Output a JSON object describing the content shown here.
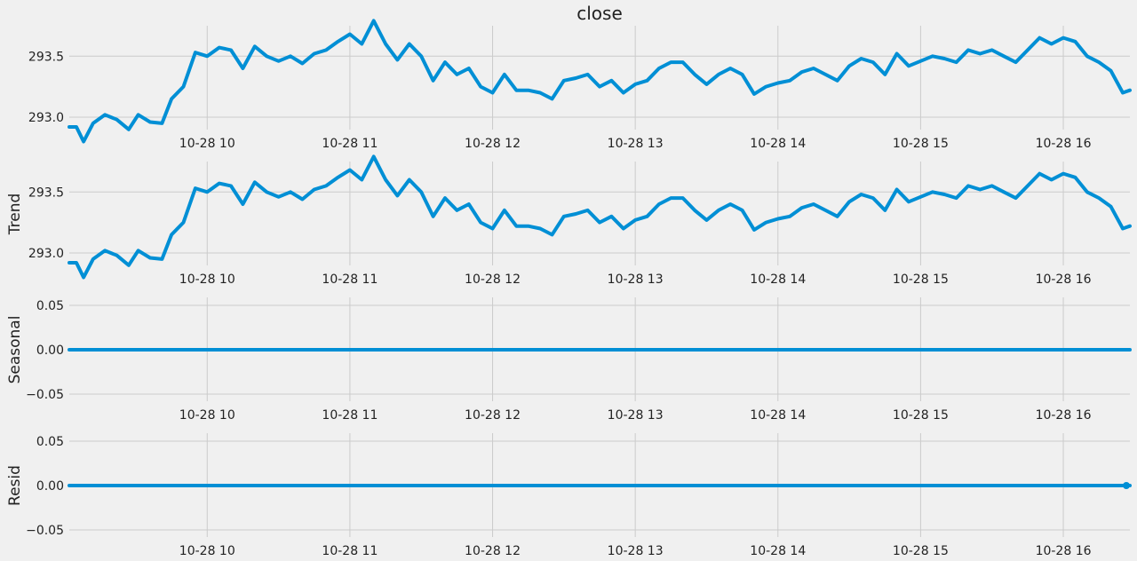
{
  "chart_data": [
    {
      "type": "line",
      "title": "close",
      "ylabel": "",
      "ylim": [
        292.92,
        293.72
      ],
      "yticks": [
        293.0,
        293.5
      ],
      "ytick_labels": [
        "293.0",
        "293.5"
      ],
      "xlim": [
        "09:02",
        "16:28"
      ],
      "xticks": [
        "10:00",
        "11:00",
        "12:00",
        "13:00",
        "14:00",
        "15:00",
        "16:00"
      ],
      "xtick_labels": [
        "10-28 10",
        "10-28 11",
        "10-28 12",
        "10-28 13",
        "10-28 14",
        "10-28 15",
        "10-28 16"
      ],
      "grid": true,
      "x": [
        "09:02",
        "09:05",
        "09:08",
        "09:12",
        "09:17",
        "09:22",
        "09:27",
        "09:31",
        "09:36",
        "09:41",
        "09:45",
        "09:50",
        "09:55",
        "10:00",
        "10:05",
        "10:10",
        "10:15",
        "10:20",
        "10:25",
        "10:30",
        "10:35",
        "10:40",
        "10:45",
        "10:50",
        "10:55",
        "11:00",
        "11:05",
        "11:10",
        "11:15",
        "11:20",
        "11:25",
        "11:30",
        "11:35",
        "11:40",
        "11:45",
        "11:50",
        "11:55",
        "12:00",
        "12:05",
        "12:10",
        "12:15",
        "12:20",
        "12:25",
        "12:30",
        "12:35",
        "12:40",
        "12:45",
        "12:50",
        "12:55",
        "13:00",
        "13:05",
        "13:10",
        "13:15",
        "13:20",
        "13:25",
        "13:30",
        "13:35",
        "13:40",
        "13:45",
        "13:50",
        "13:55",
        "14:00",
        "14:05",
        "14:10",
        "14:15",
        "14:20",
        "14:25",
        "14:30",
        "14:35",
        "14:40",
        "14:45",
        "14:50",
        "14:55",
        "15:00",
        "15:05",
        "15:10",
        "15:15",
        "15:20",
        "15:25",
        "15:30",
        "15:35",
        "15:40",
        "15:45",
        "15:50",
        "15:55",
        "16:00",
        "16:05",
        "16:10",
        "16:15",
        "16:20",
        "16:25",
        "16:28"
      ],
      "values": [
        292.92,
        292.92,
        292.8,
        292.95,
        293.02,
        292.98,
        292.9,
        293.02,
        292.96,
        292.95,
        293.15,
        293.25,
        293.53,
        293.5,
        293.57,
        293.55,
        293.4,
        293.58,
        293.5,
        293.46,
        293.5,
        293.44,
        293.52,
        293.55,
        293.62,
        293.68,
        293.6,
        293.79,
        293.6,
        293.47,
        293.6,
        293.5,
        293.3,
        293.45,
        293.35,
        293.4,
        293.25,
        293.2,
        293.35,
        293.22,
        293.22,
        293.2,
        293.15,
        293.3,
        293.32,
        293.35,
        293.25,
        293.3,
        293.2,
        293.27,
        293.3,
        293.4,
        293.45,
        293.45,
        293.35,
        293.27,
        293.35,
        293.4,
        293.35,
        293.19,
        293.25,
        293.28,
        293.3,
        293.37,
        293.4,
        293.35,
        293.3,
        293.42,
        293.48,
        293.45,
        293.35,
        293.52,
        293.42,
        293.46,
        293.5,
        293.48,
        293.45,
        293.55,
        293.52,
        293.55,
        293.5,
        293.45,
        293.55,
        293.65,
        293.6,
        293.65,
        293.62,
        293.5,
        293.45,
        293.38,
        293.2,
        293.22
      ]
    },
    {
      "type": "line",
      "title": "",
      "ylabel": "Trend",
      "ylim": [
        292.92,
        293.72
      ],
      "yticks": [
        293.0,
        293.5
      ],
      "ytick_labels": [
        "293.0",
        "293.5"
      ],
      "xlim": [
        "09:02",
        "16:28"
      ],
      "xticks": [
        "10:00",
        "11:00",
        "12:00",
        "13:00",
        "14:00",
        "15:00",
        "16:00"
      ],
      "xtick_labels": [
        "10-28 10",
        "10-28 11",
        "10-28 12",
        "10-28 13",
        "10-28 14",
        "10-28 15",
        "10-28 16"
      ],
      "grid": true,
      "x": [
        "09:02",
        "09:05",
        "09:08",
        "09:12",
        "09:17",
        "09:22",
        "09:27",
        "09:31",
        "09:36",
        "09:41",
        "09:45",
        "09:50",
        "09:55",
        "10:00",
        "10:05",
        "10:10",
        "10:15",
        "10:20",
        "10:25",
        "10:30",
        "10:35",
        "10:40",
        "10:45",
        "10:50",
        "10:55",
        "11:00",
        "11:05",
        "11:10",
        "11:15",
        "11:20",
        "11:25",
        "11:30",
        "11:35",
        "11:40",
        "11:45",
        "11:50",
        "11:55",
        "12:00",
        "12:05",
        "12:10",
        "12:15",
        "12:20",
        "12:25",
        "12:30",
        "12:35",
        "12:40",
        "12:45",
        "12:50",
        "12:55",
        "13:00",
        "13:05",
        "13:10",
        "13:15",
        "13:20",
        "13:25",
        "13:30",
        "13:35",
        "13:40",
        "13:45",
        "13:50",
        "13:55",
        "14:00",
        "14:05",
        "14:10",
        "14:15",
        "14:20",
        "14:25",
        "14:30",
        "14:35",
        "14:40",
        "14:45",
        "14:50",
        "14:55",
        "15:00",
        "15:05",
        "15:10",
        "15:15",
        "15:20",
        "15:25",
        "15:30",
        "15:35",
        "15:40",
        "15:45",
        "15:50",
        "15:55",
        "16:00",
        "16:05",
        "16:10",
        "16:15",
        "16:20",
        "16:25",
        "16:28"
      ],
      "values": [
        292.92,
        292.92,
        292.8,
        292.95,
        293.02,
        292.98,
        292.9,
        293.02,
        292.96,
        292.95,
        293.15,
        293.25,
        293.53,
        293.5,
        293.57,
        293.55,
        293.4,
        293.58,
        293.5,
        293.46,
        293.5,
        293.44,
        293.52,
        293.55,
        293.62,
        293.68,
        293.6,
        293.79,
        293.6,
        293.47,
        293.6,
        293.5,
        293.3,
        293.45,
        293.35,
        293.4,
        293.25,
        293.2,
        293.35,
        293.22,
        293.22,
        293.2,
        293.15,
        293.3,
        293.32,
        293.35,
        293.25,
        293.3,
        293.2,
        293.27,
        293.3,
        293.4,
        293.45,
        293.45,
        293.35,
        293.27,
        293.35,
        293.4,
        293.35,
        293.19,
        293.25,
        293.28,
        293.3,
        293.37,
        293.4,
        293.35,
        293.3,
        293.42,
        293.48,
        293.45,
        293.35,
        293.52,
        293.42,
        293.46,
        293.5,
        293.48,
        293.45,
        293.55,
        293.52,
        293.55,
        293.5,
        293.45,
        293.55,
        293.65,
        293.6,
        293.65,
        293.62,
        293.5,
        293.45,
        293.38,
        293.2,
        293.22
      ]
    },
    {
      "type": "line",
      "title": "",
      "ylabel": "Seasonal",
      "ylim": [
        -0.055,
        0.055
      ],
      "yticks": [
        -0.05,
        0.0,
        0.05
      ],
      "ytick_labels": [
        "−0.05",
        "0.00",
        "0.05"
      ],
      "xlim": [
        "09:02",
        "16:28"
      ],
      "xticks": [
        "10:00",
        "11:00",
        "12:00",
        "13:00",
        "14:00",
        "15:00",
        "16:00"
      ],
      "xtick_labels": [
        "10-28 10",
        "10-28 11",
        "10-28 12",
        "10-28 13",
        "10-28 14",
        "10-28 15",
        "10-28 16"
      ],
      "grid": true,
      "x": [
        "09:02",
        "16:28"
      ],
      "values": [
        0.0,
        0.0
      ]
    },
    {
      "type": "line",
      "title": "",
      "ylabel": "Resid",
      "ylim": [
        -0.055,
        0.055
      ],
      "yticks": [
        -0.05,
        0.0,
        0.05
      ],
      "ytick_labels": [
        "−0.05",
        "0.00",
        "0.05"
      ],
      "xlim": [
        "09:02",
        "16:28"
      ],
      "xticks": [
        "10:00",
        "11:00",
        "12:00",
        "13:00",
        "14:00",
        "15:00",
        "16:00"
      ],
      "xtick_labels": [
        "10-28 10",
        "10-28 11",
        "10-28 12",
        "10-28 13",
        "10-28 14",
        "10-28 15",
        "10-28 16"
      ],
      "grid": true,
      "x": [
        "09:02",
        "16:28"
      ],
      "values": [
        0.0,
        0.0
      ]
    }
  ],
  "colors": {
    "line": "#008fd5",
    "grid": "#cbcbcb",
    "background": "#f0f0f0",
    "text": "#222222"
  }
}
